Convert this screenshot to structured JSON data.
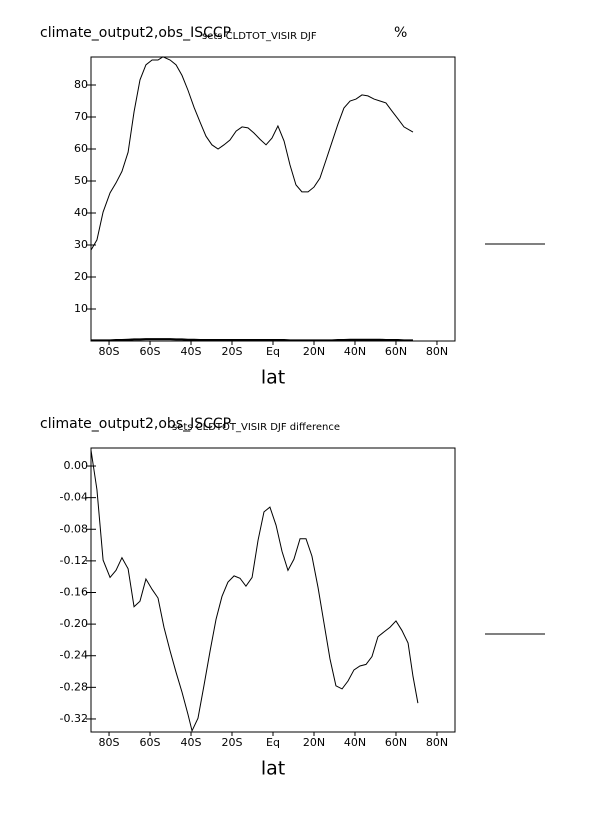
{
  "chart_data": [
    {
      "type": "line",
      "title": "climate_output2,obs_ISCCP",
      "subtitle": "sets CLDTOT_VISIR DJF",
      "units": "%",
      "x_label": "lat",
      "x": [
        -88.8,
        -85.9,
        -82.9,
        -79.5,
        -76.6,
        -73.7,
        -70.7,
        -67.8,
        -64.9,
        -62,
        -59,
        -56.1,
        -53.7,
        -50.2,
        -47.3,
        -44.4,
        -41.5,
        -38.5,
        -35.6,
        -32.7,
        -29.8,
        -26.8,
        -23.9,
        -21,
        -18,
        -15.1,
        -12.2,
        -9.3,
        -6.3,
        -3.4,
        -0.5,
        2.4,
        5.4,
        8.3,
        11.2,
        14.1,
        17.1,
        20,
        22.9,
        25.9,
        28.8,
        31.7,
        34.6,
        37.6,
        40.5,
        43.4,
        46.3,
        49.3,
        52.2,
        55.1,
        58,
        61,
        63.9,
        68.3
      ],
      "series": [
        {
          "color": "#000000",
          "values": [
            28.4,
            31.6,
            40.3,
            46.3,
            49.4,
            53,
            59,
            71.6,
            81.6,
            86.3,
            87.8,
            87.8,
            88.8,
            87.8,
            86.3,
            83,
            78.4,
            73,
            68.4,
            64,
            61.3,
            60,
            61.3,
            62.8,
            65.6,
            66.9,
            66.6,
            65,
            63,
            61.3,
            63.4,
            67.2,
            62.5,
            55,
            48.8,
            46.6,
            46.6,
            48.1,
            50.9,
            56.6,
            62.2,
            67.8,
            72.8,
            75,
            75.6,
            76.9,
            76.6,
            75.6,
            75,
            74.4,
            71.9,
            69.4,
            66.9,
            65.3
          ]
        },
        {
          "color": "#000000",
          "values": [
            0.2,
            0.2,
            0.2,
            0.2,
            0.3,
            0.3,
            0.4,
            0.5,
            0.5,
            0.6,
            0.6,
            0.6,
            0.6,
            0.6,
            0.5,
            0.5,
            0.4,
            0.4,
            0.3,
            0.3,
            0.3,
            0.3,
            0.3,
            0.3,
            0.3,
            0.3,
            0.3,
            0.3,
            0.3,
            0.3,
            0.3,
            0.3,
            0.3,
            0.2,
            0.2,
            0.2,
            0.2,
            0.2,
            0.2,
            0.2,
            0.2,
            0.3,
            0.3,
            0.4,
            0.4,
            0.4,
            0.4,
            0.4,
            0.4,
            0.3,
            0.3,
            0.3,
            0.2,
            0.2
          ]
        }
      ],
      "xlim": [
        -88.8,
        88.8
      ],
      "ylim": [
        0,
        88.75
      ],
      "xticks": [
        {
          "value": -80,
          "label": "80S"
        },
        {
          "value": -60,
          "label": "60S"
        },
        {
          "value": -40,
          "label": "40S"
        },
        {
          "value": -20,
          "label": "20S"
        },
        {
          "value": 0,
          "label": "Eq"
        },
        {
          "value": 20,
          "label": "20N"
        },
        {
          "value": 40,
          "label": "40N"
        },
        {
          "value": 60,
          "label": "60N"
        },
        {
          "value": 80,
          "label": "80N"
        }
      ],
      "yticks": [
        10,
        20,
        30,
        40,
        50,
        60,
        70,
        80
      ]
    },
    {
      "type": "line",
      "title": "climate_output2,obs_ISCCP",
      "subtitle": "sets CLDTOT_VISIR DJF difference",
      "x_label": "lat",
      "x": [
        -88.8,
        -85.9,
        -82.9,
        -79.5,
        -76.6,
        -73.7,
        -70.7,
        -67.8,
        -64.9,
        -62,
        -59,
        -56.1,
        -53.2,
        -50.2,
        -47.3,
        -44.4,
        -41.5,
        -39.5,
        -36.6,
        -33.7,
        -30.7,
        -27.8,
        -24.9,
        -22,
        -19,
        -16.1,
        -13.2,
        -10.2,
        -7.3,
        -4.4,
        -1.5,
        1.5,
        4.4,
        7.3,
        10.2,
        13.2,
        16.1,
        19,
        22,
        24.9,
        27.8,
        30.7,
        33.7,
        36.6,
        39.5,
        42.4,
        45.4,
        48.3,
        51.2,
        54.1,
        57.1,
        60,
        62.9,
        65.9,
        68.3,
        70.7
      ],
      "series": [
        {
          "color": "#000000",
          "values": [
            0.02,
            -0.03,
            -0.119,
            -0.141,
            -0.132,
            -0.116,
            -0.13,
            -0.178,
            -0.171,
            -0.143,
            -0.156,
            -0.167,
            -0.204,
            -0.234,
            -0.261,
            -0.286,
            -0.314,
            -0.335,
            -0.319,
            -0.278,
            -0.234,
            -0.194,
            -0.165,
            -0.147,
            -0.139,
            -0.142,
            -0.152,
            -0.141,
            -0.094,
            -0.058,
            -0.052,
            -0.075,
            -0.108,
            -0.132,
            -0.118,
            -0.092,
            -0.092,
            -0.114,
            -0.154,
            -0.199,
            -0.244,
            -0.278,
            -0.282,
            -0.272,
            -0.258,
            -0.253,
            -0.251,
            -0.241,
            -0.216,
            -0.21,
            -0.204,
            -0.196,
            -0.208,
            -0.224,
            -0.266,
            -0.3
          ]
        }
      ],
      "xlim": [
        -88.8,
        88.8
      ],
      "ylim": [
        -0.3365,
        0.0228
      ],
      "xticks": [
        {
          "value": -80,
          "label": "80S"
        },
        {
          "value": -60,
          "label": "60S"
        },
        {
          "value": -40,
          "label": "40S"
        },
        {
          "value": -20,
          "label": "20S"
        },
        {
          "value": 0,
          "label": "Eq"
        },
        {
          "value": 20,
          "label": "20N"
        },
        {
          "value": 40,
          "label": "40N"
        },
        {
          "value": 60,
          "label": "60N"
        },
        {
          "value": 80,
          "label": "80N"
        }
      ],
      "yticks": [
        {
          "value": 0,
          "label": "0.00"
        },
        {
          "value": -0.04,
          "label": "-0.04"
        },
        {
          "value": -0.08,
          "label": "-0.08"
        },
        {
          "value": -0.12,
          "label": "-0.12"
        },
        {
          "value": -0.16,
          "label": "-0.16"
        },
        {
          "value": -0.2,
          "label": "-0.20"
        },
        {
          "value": -0.24,
          "label": "-0.24"
        },
        {
          "value": -0.28,
          "label": "-0.28"
        },
        {
          "value": -0.32,
          "label": "-0.32"
        }
      ]
    }
  ]
}
